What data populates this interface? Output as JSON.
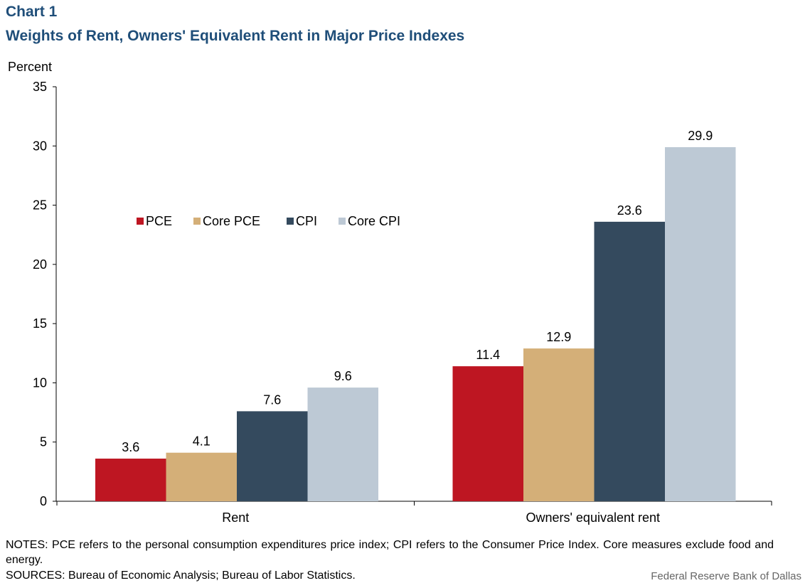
{
  "header": {
    "chart_number": "Chart 1",
    "title": "Weights of Rent, Owners' Equivalent Rent in Major Price Indexes"
  },
  "footer": {
    "notes": "NOTES: PCE refers to the personal consumption expenditures price index; CPI refers to the Consumer Price Index. Core measures exclude food and energy.",
    "sources": "SOURCES: Bureau of Economic Analysis; Bureau of Labor Statistics.",
    "credit": "Federal Reserve Bank of Dallas"
  },
  "chart_data": {
    "type": "bar",
    "ylabel": "Percent",
    "ylim": [
      0,
      35
    ],
    "yticks": [
      0,
      5,
      10,
      15,
      20,
      25,
      30,
      35
    ],
    "grid": false,
    "legend_position": "upper-left",
    "categories": [
      "Rent",
      "Owners' equivalent rent"
    ],
    "series": [
      {
        "name": "PCE",
        "color": "#be1622",
        "values": [
          3.6,
          11.4
        ]
      },
      {
        "name": "Core PCE",
        "color": "#d4af78",
        "values": [
          4.1,
          12.9
        ]
      },
      {
        "name": "CPI",
        "color": "#344a5e",
        "values": [
          7.6,
          23.6
        ]
      },
      {
        "name": "Core CPI",
        "color": "#bdc9d5",
        "values": [
          9.6,
          29.9
        ]
      }
    ]
  }
}
